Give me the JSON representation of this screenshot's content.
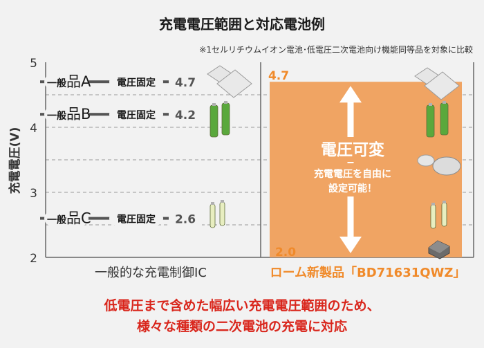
{
  "chart_data": {
    "type": "bar",
    "title": "充電電圧範囲と対応電池例",
    "subtitle": "※1セルリチウムイオン電池･低電圧二次電池向け機能同等品を対象に比較",
    "ylabel": "充電電圧(V)",
    "ylim": [
      2,
      5
    ],
    "ytick_labels": [
      "5",
      "4",
      "3",
      "2"
    ],
    "grid": true,
    "categories": [
      "一般的な充電制御IC",
      "ローム新製品「BD71631QWZ」"
    ],
    "general_products": [
      {
        "name": "一般品A",
        "mode": "電圧固定",
        "voltage": 4.7,
        "label": "4.7"
      },
      {
        "name": "一般品B",
        "mode": "電圧固定",
        "voltage": 4.2,
        "label": "4.2"
      },
      {
        "name": "一般品C",
        "mode": "電圧固定",
        "voltage": 2.6,
        "label": "2.6"
      }
    ],
    "rohm_range": {
      "min": 2.0,
      "max": 4.7,
      "min_label": "2.0",
      "max_label": "4.7",
      "heading": "電圧可変",
      "note_line1": "充電電圧を自由に",
      "note_line2": "設定可能！"
    },
    "footer_line1": "低電圧まで含めた幅広い充電電圧範囲のため、",
    "footer_line2": "様々な種類の二次電池の充電に対応"
  },
  "colors": {
    "accent": "#f0a463",
    "accent_text": "#f08a2a",
    "footer_text": "#d9261c",
    "axis": "#666666",
    "grid": "#999999",
    "marker": "#555555",
    "battery_green": "#5aa83c",
    "battery_cream": "#e8eec0"
  },
  "icons": [
    "laminate-cell-icon",
    "cylinder-battery-icon",
    "coin-cell-icon",
    "chip-icon",
    "double-arrow-icon"
  ]
}
